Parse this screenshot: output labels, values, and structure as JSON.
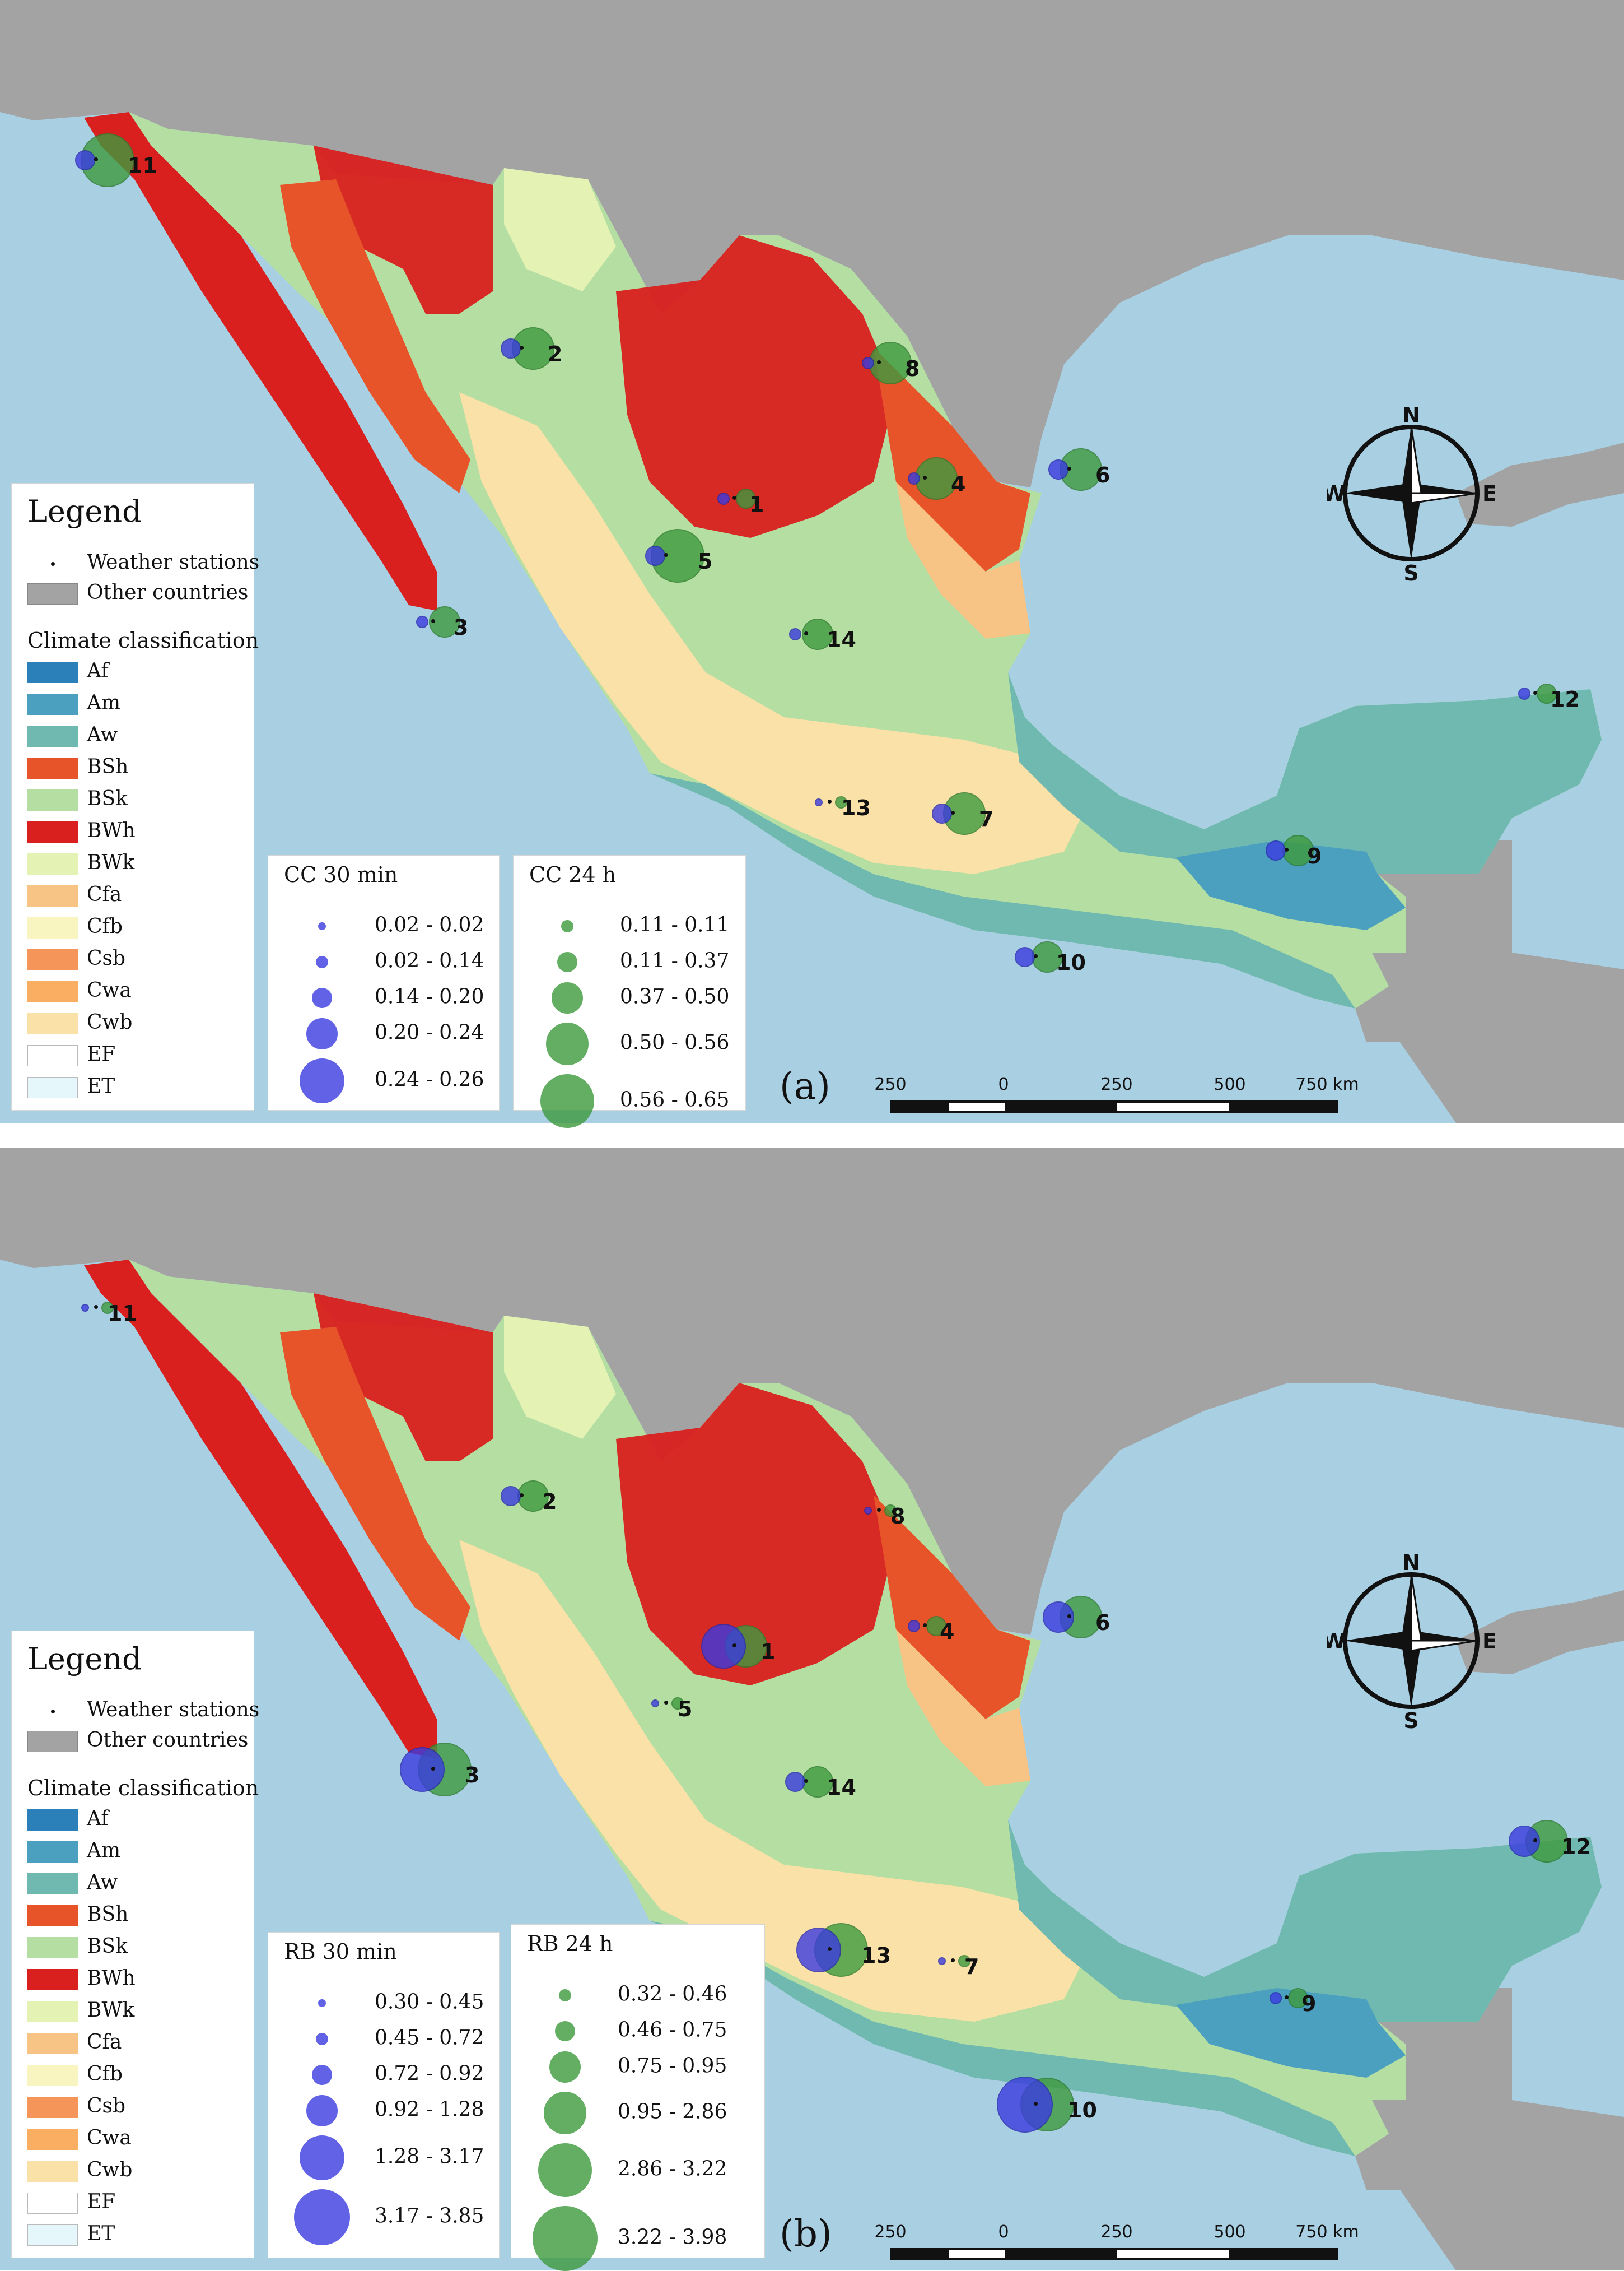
{
  "colors": {
    "sea": "#a9cfe3",
    "other_countries": "#a3a3a3",
    "Af": "#2b80b9",
    "Am": "#4ba0c0",
    "Aw": "#6fb9b1",
    "BSh": "#e8542a",
    "BSk": "#b5dea2",
    "BWh": "#d9201f",
    "BWk": "#e4f2b4",
    "Cfa": "#f8c486",
    "Cfb": "#f8f5c0",
    "Csb": "#f6955a",
    "Cwa": "#f9ae62",
    "Cwb": "#fae1a8",
    "EF": "#ffffff",
    "ET": "#e6f7fb",
    "cc_30min": "#3b3be0",
    "cc_24h": "#3e9a3e"
  },
  "legend": {
    "title": "Legend",
    "weather_stations": "Weather stations",
    "other_countries": "Other countries",
    "climate_heading": "Climate classification",
    "classes": [
      "Af",
      "Am",
      "Aw",
      "BSh",
      "BSk",
      "BWh",
      "BWk",
      "Cfa",
      "Cfb",
      "Csb",
      "Cwa",
      "Cwb",
      "EF",
      "ET"
    ]
  },
  "compass": {
    "n": "N",
    "s": "S",
    "e": "E",
    "w": "W",
    "icon": "compass-rose-icon"
  },
  "scale": {
    "labels": [
      "250",
      "0",
      "250",
      "500",
      "750 km"
    ]
  },
  "panels": [
    {
      "label": "(a)",
      "legend_30": {
        "title": "CC 30 min",
        "classes": [
          "0.02 - 0.02",
          "0.02 - 0.14",
          "0.14 - 0.20",
          "0.20 - 0.24",
          "0.24 - 0.26"
        ]
      },
      "legend_24": {
        "title": "CC 24 h",
        "classes": [
          "0.11 - 0.11",
          "0.11 - 0.37",
          "0.37 - 0.50",
          "0.50 - 0.56",
          "0.56 - 0.65"
        ]
      },
      "stations": [
        {
          "id": "1",
          "b30": 2,
          "b24": 2
        },
        {
          "id": "2",
          "b30": 3,
          "b24": 4
        },
        {
          "id": "3",
          "b30": 2,
          "b24": 3
        },
        {
          "id": "4",
          "b30": 2,
          "b24": 4
        },
        {
          "id": "5",
          "b30": 3,
          "b24": 5
        },
        {
          "id": "6",
          "b30": 3,
          "b24": 4
        },
        {
          "id": "7",
          "b30": 3,
          "b24": 4
        },
        {
          "id": "8",
          "b30": 2,
          "b24": 4
        },
        {
          "id": "9",
          "b30": 3,
          "b24": 3
        },
        {
          "id": "10",
          "b30": 3,
          "b24": 3
        },
        {
          "id": "11",
          "b30": 3,
          "b24": 5
        },
        {
          "id": "12",
          "b30": 2,
          "b24": 2
        },
        {
          "id": "13",
          "b30": 1,
          "b24": 1
        },
        {
          "id": "14",
          "b30": 2,
          "b24": 3
        }
      ]
    },
    {
      "label": "(b)",
      "legend_30": {
        "title": "RB 30 min",
        "classes": [
          "0.30 - 0.45",
          "0.45 - 0.72",
          "0.72 - 0.92",
          "0.92 - 1.28",
          "1.28 - 3.17",
          "3.17 - 3.85"
        ]
      },
      "legend_24": {
        "title": "RB 24 h",
        "classes": [
          "0.32 - 0.46",
          "0.46 - 0.75",
          "0.75 - 0.95",
          "0.95 - 2.86",
          "2.86 - 3.22",
          "3.22 - 3.98"
        ]
      },
      "stations": [
        {
          "id": "1",
          "b30": 5,
          "b24": 4
        },
        {
          "id": "2",
          "b30": 3,
          "b24": 3
        },
        {
          "id": "3",
          "b30": 5,
          "b24": 5
        },
        {
          "id": "4",
          "b30": 2,
          "b24": 2
        },
        {
          "id": "5",
          "b30": 1,
          "b24": 1
        },
        {
          "id": "6",
          "b30": 4,
          "b24": 4
        },
        {
          "id": "7",
          "b30": 1,
          "b24": 1
        },
        {
          "id": "8",
          "b30": 1,
          "b24": 1
        },
        {
          "id": "9",
          "b30": 2,
          "b24": 2
        },
        {
          "id": "10",
          "b30": 6,
          "b24": 5
        },
        {
          "id": "11",
          "b30": 1,
          "b24": 1
        },
        {
          "id": "12",
          "b30": 4,
          "b24": 4
        },
        {
          "id": "13",
          "b30": 5,
          "b24": 5
        },
        {
          "id": "14",
          "b30": 3,
          "b24": 3
        }
      ]
    }
  ]
}
